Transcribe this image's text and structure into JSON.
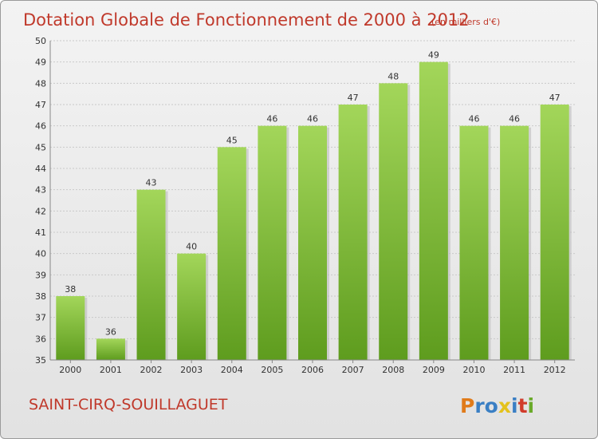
{
  "chart_data": {
    "type": "bar",
    "title": "Dotation Globale de Fonctionnement de 2000 à 2012",
    "subtitle": "(en milliers d'€)",
    "xlabel": "",
    "ylabel": "",
    "categories": [
      "2000",
      "2001",
      "2002",
      "2003",
      "2004",
      "2005",
      "2006",
      "2007",
      "2008",
      "2009",
      "2010",
      "2011",
      "2012"
    ],
    "values": [
      38,
      36,
      43,
      40,
      45,
      46,
      46,
      47,
      48,
      49,
      46,
      46,
      47
    ],
    "ylim": [
      35,
      50
    ],
    "yticks": [
      35,
      36,
      37,
      38,
      39,
      40,
      41,
      42,
      43,
      44,
      45,
      46,
      47,
      48,
      49,
      50
    ],
    "grid": true,
    "bar_color": "#7cc13a",
    "bar_color_light": "#a3d65a",
    "bar_color_dark": "#5e9c1e"
  },
  "footer": {
    "commune": "SAINT-CIRQ-SOUILLAGUET",
    "logo": [
      "P",
      "r",
      "o",
      "x",
      "i",
      "t",
      "i"
    ],
    "logo_colors": [
      "#e07b1a",
      "#3a7fc4",
      "#3a7fc4",
      "#e4c21c",
      "#3a7fc4",
      "#d13b2b",
      "#6aaa2a"
    ]
  }
}
